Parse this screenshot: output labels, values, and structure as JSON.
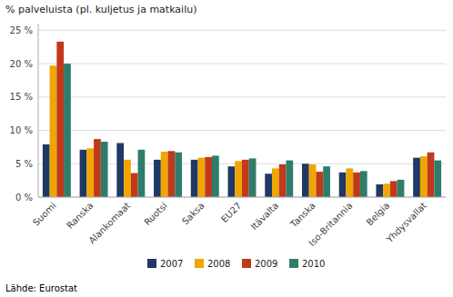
{
  "chart_data": {
    "type": "bar",
    "title": "% palveluista (pl. kuljetus ja matkailu)",
    "categories": [
      "Suomi",
      "Ranska",
      "Alankomaat",
      "Ruotsi",
      "Saksa",
      "EU27",
      "Itävalta",
      "Tanska",
      "Iso-Britannia",
      "Belgia",
      "Yhdysvallat"
    ],
    "series": [
      {
        "name": "2007",
        "color": "#1F3864",
        "values": [
          7.9,
          7.1,
          8.1,
          5.6,
          5.6,
          4.6,
          3.5,
          5.0,
          3.7,
          1.9,
          5.9
        ]
      },
      {
        "name": "2008",
        "color": "#F0A500",
        "values": [
          19.7,
          7.3,
          5.6,
          6.8,
          5.9,
          5.4,
          4.3,
          4.9,
          4.3,
          2.0,
          6.1
        ]
      },
      {
        "name": "2009",
        "color": "#C0391B",
        "values": [
          23.3,
          8.7,
          3.6,
          6.9,
          6.0,
          5.6,
          4.9,
          3.8,
          3.7,
          2.4,
          6.7
        ]
      },
      {
        "name": "2010",
        "color": "#2E7D6B",
        "values": [
          20.0,
          8.3,
          7.1,
          6.7,
          6.2,
          5.8,
          5.5,
          4.6,
          3.9,
          2.6,
          5.5
        ]
      }
    ],
    "ylim": [
      0,
      26
    ],
    "yticks": [
      {
        "value": 0,
        "label": "0 %"
      },
      {
        "value": 5,
        "label": "5 %"
      },
      {
        "value": 10,
        "label": "10 %"
      },
      {
        "value": 15,
        "label": "15 %"
      },
      {
        "value": 20,
        "label": "20 %"
      },
      {
        "value": 25,
        "label": "25 %"
      }
    ],
    "grid": true,
    "legend": "bottom",
    "annotations": [
      "Lähde: Eurostat"
    ]
  }
}
